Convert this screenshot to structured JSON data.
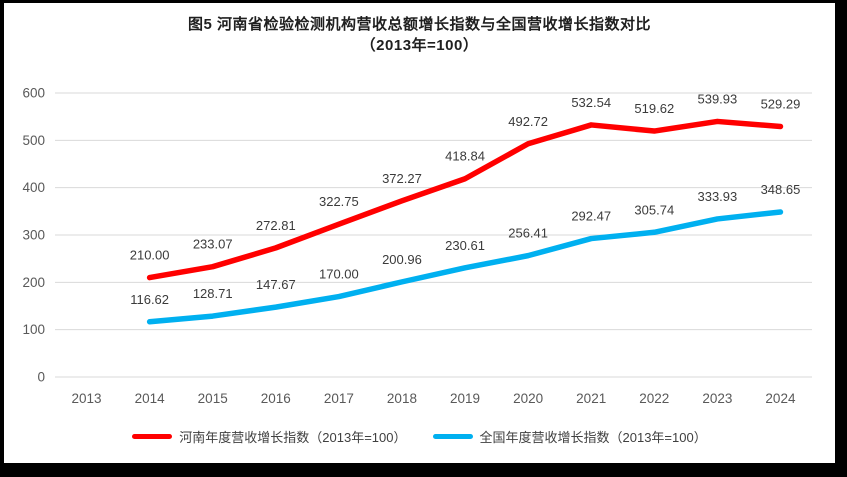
{
  "frame": {
    "background": "#FFFFFF",
    "border_color": "#000000"
  },
  "title": {
    "line1": "图5  河南省检验检测机构营收总额增长指数与全国营收增长指数对比",
    "line2": "（2013年=100）"
  },
  "chart_data": {
    "type": "line",
    "title": "图5 河南省检验检测机构营收总额增长指数与全国营收增长指数对比（2013年=100）",
    "categories": [
      "2013",
      "2014",
      "2015",
      "2016",
      "2017",
      "2018",
      "2019",
      "2020",
      "2021",
      "2022",
      "2023",
      "2024"
    ],
    "series": [
      {
        "name": "河南年度营收增长指数（2013年=100）",
        "color": "#FF0000",
        "values": [
          null,
          210.0,
          233.07,
          272.81,
          322.75,
          372.27,
          418.84,
          492.72,
          532.54,
          519.62,
          539.93,
          529.29
        ]
      },
      {
        "name": "全国年度营收增长指数（2013年=100）",
        "color": "#00B0F0",
        "values": [
          null,
          116.62,
          128.71,
          147.67,
          170.0,
          200.96,
          230.61,
          256.41,
          292.47,
          305.74,
          333.93,
          348.65
        ]
      }
    ],
    "ylim": [
      0,
      600
    ],
    "ytick_step": 100,
    "yticks": [
      0,
      100,
      200,
      300,
      400,
      500,
      600
    ],
    "grid": true,
    "legend_position": "bottom",
    "data_labels": true,
    "label_decimals": 2,
    "xlabel": "",
    "ylabel": "",
    "style": {
      "gridline_color": "#D9D9D9",
      "tick_label_color": "#595959",
      "data_label_color": "#3B3B3B",
      "line_width": 5.5
    }
  }
}
